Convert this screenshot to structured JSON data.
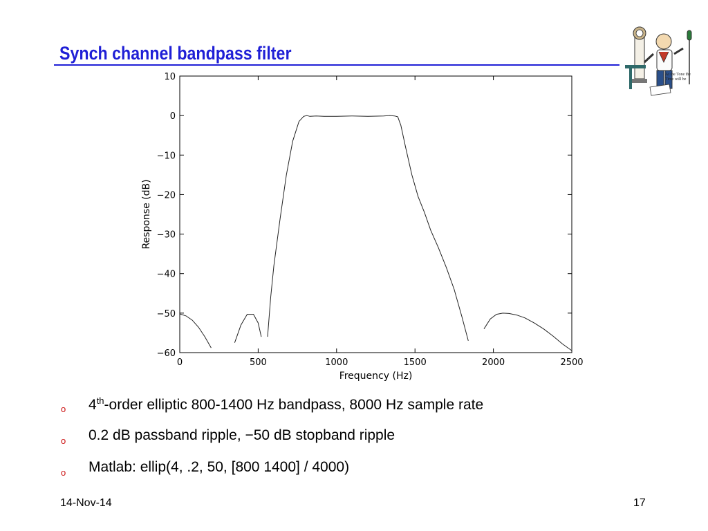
{
  "slide": {
    "title": "Synch channel bandpass filter",
    "title_color": "#1f1fd6"
  },
  "clipart": {
    "caption_line1": "At the Tone the",
    "caption_line2": "Time will be"
  },
  "chart_data": {
    "type": "line",
    "xlabel": "Frequency (Hz)",
    "ylabel": "Response (dB)",
    "xlim": [
      0,
      2500
    ],
    "ylim": [
      -60,
      10
    ],
    "xticks": [
      0,
      500,
      1000,
      1500,
      2000,
      2500
    ],
    "yticks": [
      10,
      0,
      -10,
      -20,
      -30,
      -40,
      -50,
      -60
    ],
    "grid": false,
    "series": [
      {
        "values_note": "",
        "x": [
          0,
          40,
          80,
          120,
          160,
          200,
          230,
          240,
          330,
          350,
          390,
          430,
          470,
          500,
          520,
          535,
          540,
          555,
          560,
          580,
          600,
          640,
          680,
          720,
          760,
          790,
          810,
          830,
          870,
          920,
          1000,
          1100,
          1200,
          1300,
          1340,
          1370,
          1390,
          1410,
          1440,
          1480,
          1520,
          1560,
          1600,
          1650,
          1700,
          1750,
          1800,
          1840,
          1870,
          1880,
          1895,
          1940,
          1980,
          2020,
          2060,
          2100,
          2150,
          2200,
          2260,
          2320,
          2380,
          2440,
          2500
        ],
        "y": [
          -50.2,
          -50.7,
          -51.8,
          -53.6,
          -56.0,
          -58.8,
          -60.5,
          -60.5,
          -60.5,
          -57.5,
          -53.0,
          -50.3,
          -50.3,
          -52.5,
          -56.0,
          -60.5,
          -60.5,
          -60.5,
          -56.0,
          -46.0,
          -38.0,
          -26.0,
          -15.0,
          -6.5,
          -1.5,
          -0.2,
          0.0,
          -0.2,
          -0.1,
          -0.2,
          -0.2,
          -0.1,
          -0.2,
          -0.1,
          0.0,
          -0.1,
          -0.3,
          -2.5,
          -8.0,
          -15.0,
          -20.5,
          -24.5,
          -29.0,
          -33.5,
          -38.5,
          -44.0,
          -51.0,
          -57.0,
          -60.5,
          -60.5,
          -60.5,
          -54.0,
          -51.5,
          -50.3,
          -50.0,
          -50.1,
          -50.5,
          -51.2,
          -52.5,
          -54.0,
          -55.8,
          -57.8,
          -59.5
        ]
      }
    ]
  },
  "bullets": [
    {
      "prefix": "4",
      "sup": "th",
      "rest": "-order elliptic 800-1400 Hz bandpass, 8000 Hz sample rate"
    },
    {
      "text": "0.2 dB passband ripple, −50 dB stopband ripple"
    },
    {
      "text": "Matlab: ellip(4, .2, 50, [800 1400] / 4000)"
    }
  ],
  "bullet_marker": "o",
  "footer": {
    "date": "14-Nov-14",
    "page": "17"
  }
}
